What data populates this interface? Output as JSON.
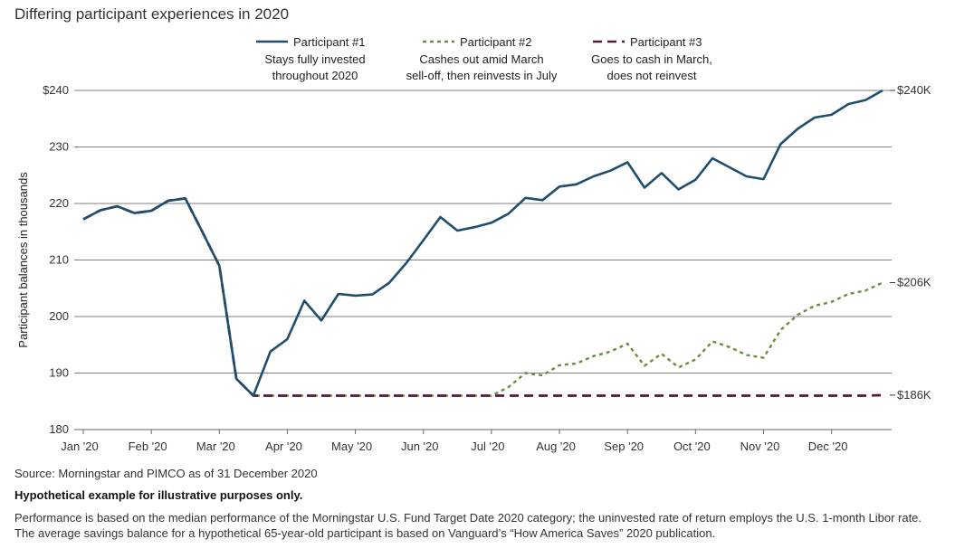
{
  "chart_data": {
    "type": "line",
    "title": "Differing participant experiences in 2020",
    "ylabel": "Participant balances in thousands",
    "xlabel": "",
    "ylim": [
      180,
      240
    ],
    "yticks": [
      180,
      190,
      200,
      210,
      220,
      230,
      240
    ],
    "ytick_labels": [
      "180",
      "190",
      "200",
      "210",
      "220",
      "230",
      "$240"
    ],
    "categories": [
      "Jan '20",
      "Feb '20",
      "Mar '20",
      "Apr '20",
      "May '20",
      "Jun '20",
      "Jul '20",
      "Aug '20",
      "Sep '20",
      "Oct '20",
      "Nov '20",
      "Dec '20"
    ],
    "x_range": [
      0,
      48
    ],
    "series": [
      {
        "name": "Participant #1",
        "desc1": "Stays fully invested",
        "desc2": "throughout 2020",
        "color": "#1f4e6e",
        "dash": "solid",
        "end_label": "$240K",
        "x": [
          0,
          1,
          2,
          3,
          4,
          5,
          6,
          7,
          8,
          9,
          10,
          11,
          12,
          13,
          14,
          15,
          16,
          17,
          18,
          19,
          20,
          21,
          22,
          23,
          24,
          25,
          26,
          27,
          28,
          29,
          30,
          31,
          32,
          33,
          34,
          35,
          36,
          37,
          38,
          39,
          40,
          41,
          42,
          43,
          44,
          45,
          46,
          47
        ],
        "values": [
          217.2,
          218.8,
          219.5,
          218.3,
          218.7,
          220.5,
          220.9,
          215.0,
          209.0,
          189.0,
          186.0,
          193.8,
          196.0,
          202.8,
          199.3,
          204.0,
          203.7,
          203.9,
          206.0,
          209.5,
          213.5,
          217.6,
          215.2,
          215.8,
          216.6,
          218.2,
          221.0,
          220.6,
          223.0,
          223.4,
          224.8,
          225.8,
          227.3,
          222.8,
          225.4,
          222.5,
          224.2,
          228.0,
          226.4,
          224.8,
          224.3,
          230.5,
          233.2,
          235.2,
          235.7,
          237.6,
          238.3,
          240.0
        ]
      },
      {
        "name": "Participant #2",
        "desc1": "Cashes out amid March",
        "desc2": "sell-off, then reinvests in July",
        "color": "#6b8e3a",
        "dash": "dashed",
        "end_label": "$206K",
        "x": [
          0,
          1,
          2,
          3,
          4,
          5,
          6,
          7,
          8,
          9,
          10,
          11,
          12,
          13,
          14,
          15,
          16,
          17,
          18,
          19,
          20,
          21,
          22,
          23,
          24,
          25,
          26,
          27,
          28,
          29,
          30,
          31,
          32,
          33,
          34,
          35,
          36,
          37,
          38,
          39,
          40,
          41,
          42,
          43,
          44,
          45,
          46,
          47
        ],
        "values": [
          217.2,
          218.8,
          219.5,
          218.3,
          218.7,
          220.5,
          220.9,
          215.0,
          209.0,
          189.0,
          186.0,
          186.0,
          186.0,
          186.0,
          186.0,
          186.0,
          186.0,
          186.0,
          186.0,
          186.0,
          186.0,
          186.0,
          186.0,
          186.0,
          186.0,
          187.5,
          190.0,
          189.6,
          191.4,
          191.7,
          193.0,
          193.8,
          195.2,
          191.3,
          193.4,
          191.0,
          192.4,
          195.6,
          194.6,
          193.2,
          192.7,
          197.6,
          200.3,
          201.9,
          202.6,
          204.0,
          204.6,
          206.0
        ]
      },
      {
        "name": "Participant #3",
        "desc1": "Goes to cash in March,",
        "desc2": "does not reinvest",
        "color": "#5a1640",
        "dash": "dashed",
        "end_label": "$186K",
        "x": [
          0,
          1,
          2,
          3,
          4,
          5,
          6,
          7,
          8,
          9,
          10,
          11,
          12,
          13,
          14,
          15,
          16,
          17,
          18,
          19,
          20,
          21,
          22,
          23,
          24,
          25,
          26,
          27,
          28,
          29,
          30,
          31,
          32,
          33,
          34,
          35,
          36,
          37,
          38,
          39,
          40,
          41,
          42,
          43,
          44,
          45,
          46,
          47
        ],
        "values": [
          217.2,
          218.8,
          219.5,
          218.3,
          218.7,
          220.5,
          220.9,
          215.0,
          209.0,
          189.0,
          186.0,
          186.0,
          186.0,
          186.0,
          186.0,
          186.0,
          186.0,
          186.0,
          186.0,
          186.0,
          186.0,
          186.0,
          186.0,
          186.0,
          186.0,
          186.0,
          186.0,
          186.0,
          186.0,
          186.0,
          186.0,
          186.0,
          186.0,
          186.0,
          186.0,
          186.0,
          186.0,
          186.0,
          186.0,
          186.0,
          186.0,
          186.0,
          186.0,
          186.0,
          186.0,
          186.0,
          186.0,
          186.1
        ]
      }
    ],
    "legend_position": "top-center",
    "grid": true
  },
  "footer": {
    "source": "Source: Morningstar and PIMCO as of 31 December 2020",
    "disclaimer": "Hypothetical example for illustrative purposes only.",
    "performance": "Performance is based on the median performance of the Morningstar U.S. Fund Target Date 2020 category; the uninvested rate of return employs the U.S. 1-month Libor rate. The average savings balance for a hypothetical 65-year-old participant is based on Vanguard’s “How America Saves” 2020 publication."
  }
}
